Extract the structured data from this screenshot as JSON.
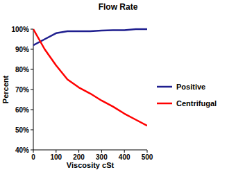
{
  "chart_data": {
    "type": "line",
    "title": "Flow Rate",
    "x_label": "Viscosity cSt",
    "y_label": "Percent",
    "x": [
      0,
      50,
      100,
      150,
      200,
      250,
      300,
      350,
      400,
      450,
      500
    ],
    "series": [
      {
        "name": "Positive",
        "color": "#1f1f8f",
        "values": [
          92,
          95,
          98,
          99,
          99,
          99,
          99.3,
          99.5,
          99.5,
          100,
          100
        ]
      },
      {
        "name": "Centrifugal",
        "color": "#ff0000",
        "values": [
          100,
          90,
          82,
          75,
          71,
          68,
          64.5,
          61.5,
          58,
          55,
          52
        ]
      }
    ],
    "xlim": [
      0,
      500
    ],
    "xticks": [
      0,
      100,
      200,
      300,
      400,
      500
    ],
    "ylim": [
      40,
      100
    ],
    "yticks": [
      {
        "value": 40,
        "label": "40%"
      },
      {
        "value": 50,
        "label": "50%"
      },
      {
        "value": 60,
        "label": "60%"
      },
      {
        "value": 70,
        "label": "70%"
      },
      {
        "value": 80,
        "label": "80%"
      },
      {
        "value": 90,
        "label": "90%"
      },
      {
        "value": 100,
        "label": "100%"
      }
    ],
    "grid": false,
    "legend": "right"
  }
}
